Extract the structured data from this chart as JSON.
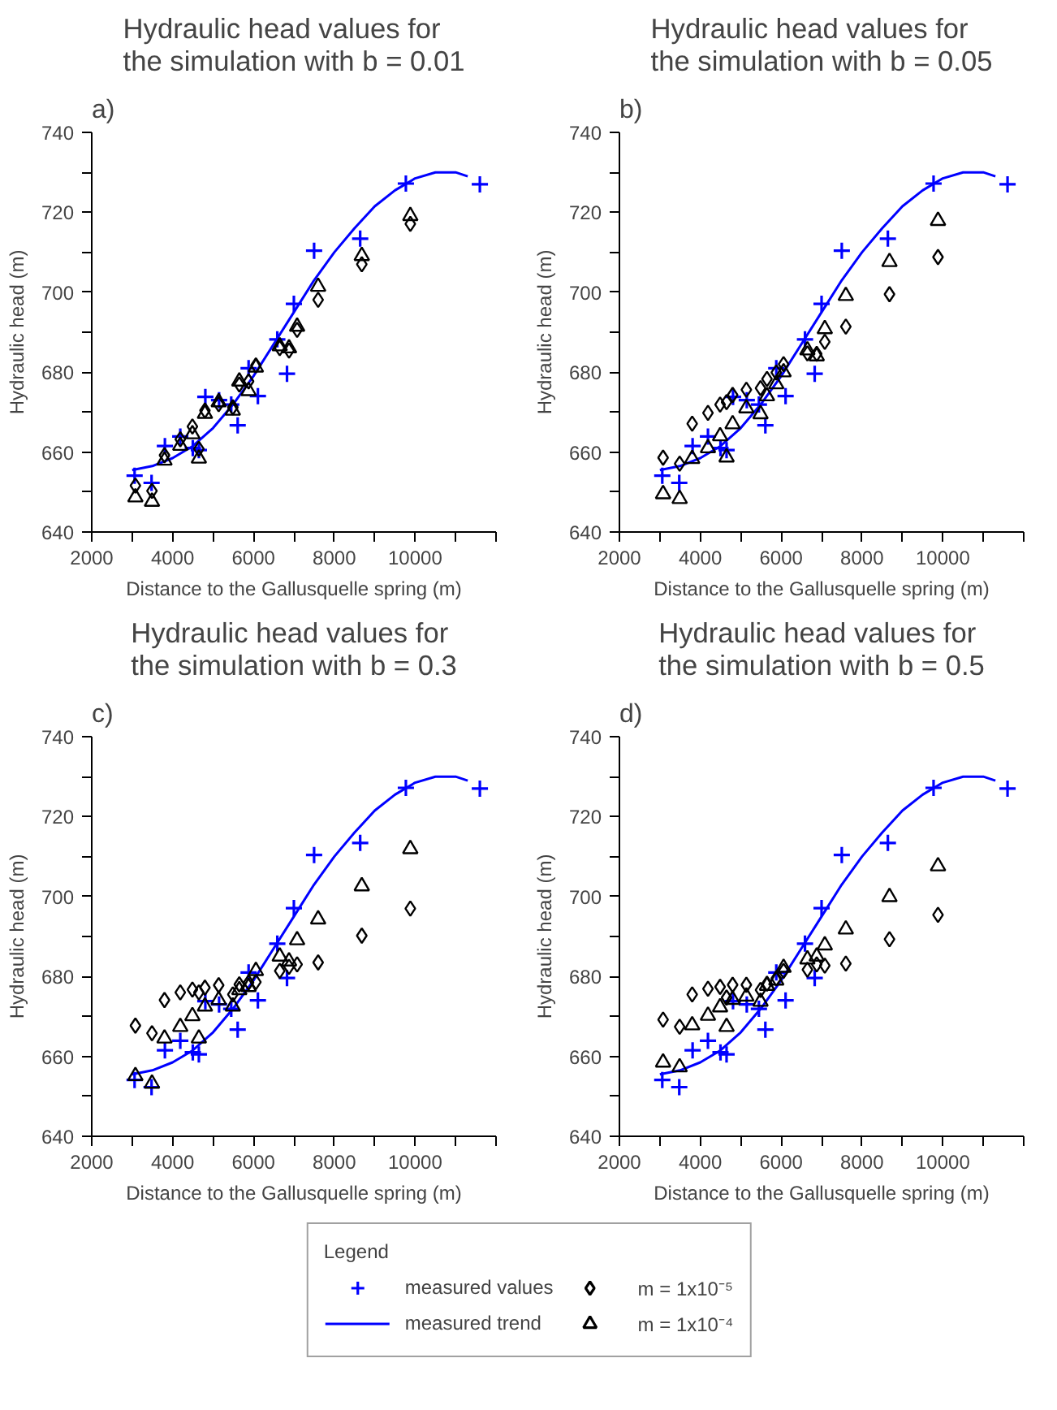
{
  "chart_data": [
    {
      "type": "scatter",
      "title": "Hydraulic head values for\nthe simulation with b = 0.01",
      "annotations": [
        "a)"
      ],
      "xlabel": "Distance to the Gallusquelle spring (m)",
      "ylabel": "Hydraulic head (m)",
      "xlim": [
        2000,
        12000
      ],
      "ylim": [
        640,
        740
      ],
      "xticks": [
        2000,
        {
          "value": 3000,
          "label": null
        },
        4000,
        {
          "value": 5000,
          "label": null
        },
        6000,
        {
          "value": 7000,
          "label": null
        },
        8000,
        {
          "value": 9000,
          "label": null
        },
        10000,
        {
          "value": 11000,
          "label": null
        },
        {
          "value": 12000,
          "label": null
        }
      ],
      "yticks": [
        640,
        {
          "value": 650,
          "label": null
        },
        660,
        {
          "value": 670,
          "label": null
        },
        680,
        {
          "value": 690,
          "label": null
        },
        700,
        {
          "value": 710,
          "label": null
        },
        720,
        {
          "value": 730,
          "label": null
        },
        740
      ],
      "grid": false,
      "legend": "bottom",
      "legend_title": "Legend",
      "series": [
        {
          "name": "measured values",
          "type": "scatter",
          "marker": "cross",
          "color": "#0000ff",
          "x": [
            3060,
            3480,
            3810,
            4190,
            4500,
            4650,
            4810,
            5150,
            5450,
            5610,
            5880,
            6110,
            6590,
            6830,
            7000,
            7500,
            8640,
            9770,
            11600
          ],
          "values": [
            654.1,
            652.3,
            661.5,
            663.9,
            661.0,
            660.5,
            673.8,
            673.0,
            671.9,
            666.7,
            681.0,
            674.0,
            688.2,
            679.6,
            697.1,
            710.4,
            713.4,
            727.2,
            727.0
          ]
        },
        {
          "name": "measured trend",
          "type": "line",
          "marker": "none",
          "color": "#0000ff",
          "x": [
            3000,
            3500,
            4000,
            4500,
            5000,
            5500,
            6000,
            6500,
            7000,
            7500,
            8000,
            8500,
            9000,
            9500,
            10000,
            10500,
            11000,
            11300
          ],
          "values": [
            655.5,
            656.5,
            658.5,
            661.5,
            666,
            672,
            679,
            687,
            695,
            703,
            710,
            716,
            721.5,
            725.5,
            728.5,
            730,
            730,
            729
          ]
        },
        {
          "name": "m = 1x10⁻⁵",
          "type": "scatter",
          "marker": "diamond",
          "color": "#000000",
          "x": [
            3080,
            3490,
            3800,
            4190,
            4490,
            4650,
            4800,
            5140,
            5490,
            5650,
            5880,
            6060,
            6650,
            6880,
            7080,
            7600,
            8680,
            9880
          ],
          "values": [
            651.6,
            650.3,
            659.2,
            663.2,
            666.4,
            660.8,
            670.4,
            672.0,
            671.2,
            676.9,
            677.7,
            681.7,
            686.0,
            685.4,
            690.6,
            698.1,
            707.0,
            717.1
          ]
        },
        {
          "name": "m = 1x10⁻⁴",
          "type": "scatter",
          "marker": "triangle",
          "color": "#000000",
          "x": [
            3080,
            3490,
            3800,
            4190,
            4490,
            4650,
            4800,
            5140,
            5490,
            5650,
            5880,
            6060,
            6650,
            6880,
            7080,
            7600,
            8680,
            9880
          ],
          "values": [
            648.7,
            647.6,
            657.9,
            661.6,
            664.5,
            658.4,
            669.6,
            672.5,
            670.4,
            677.7,
            675.3,
            681.2,
            686.5,
            686.0,
            691.4,
            701.4,
            709.1,
            719.1
          ]
        }
      ]
    },
    {
      "type": "scatter",
      "title": "Hydraulic head values for\nthe simulation with b = 0.05",
      "annotations": [
        "b)"
      ],
      "xlabel": "Distance to the Gallusquelle spring (m)",
      "ylabel": "Hydraulic head (m)",
      "xlim": [
        2000,
        12000
      ],
      "ylim": [
        640,
        740
      ],
      "xticks": [
        2000,
        {
          "value": 3000,
          "label": null
        },
        4000,
        {
          "value": 5000,
          "label": null
        },
        6000,
        {
          "value": 7000,
          "label": null
        },
        8000,
        {
          "value": 9000,
          "label": null
        },
        10000,
        {
          "value": 11000,
          "label": null
        },
        {
          "value": 12000,
          "label": null
        }
      ],
      "yticks": [
        640,
        {
          "value": 650,
          "label": null
        },
        660,
        {
          "value": 670,
          "label": null
        },
        680,
        {
          "value": 690,
          "label": null
        },
        700,
        {
          "value": 710,
          "label": null
        },
        720,
        {
          "value": 730,
          "label": null
        },
        740
      ],
      "grid": false,
      "series": [
        {
          "type": "scatter",
          "marker": "cross",
          "color": "#0000ff",
          "x": [
            3060,
            3480,
            3810,
            4190,
            4500,
            4650,
            4810,
            5150,
            5450,
            5610,
            5880,
            6110,
            6590,
            6830,
            7000,
            7500,
            8640,
            9770,
            11600
          ],
          "values": [
            654.1,
            652.3,
            661.5,
            663.9,
            661.0,
            660.5,
            673.8,
            673.0,
            671.9,
            666.7,
            681.0,
            674.0,
            688.2,
            679.6,
            697.1,
            710.4,
            713.4,
            727.2,
            727.0
          ]
        },
        {
          "type": "line",
          "marker": "none",
          "color": "#0000ff",
          "x": [
            3000,
            3500,
            4000,
            4500,
            5000,
            5500,
            6000,
            6500,
            7000,
            7500,
            8000,
            8500,
            9000,
            9500,
            10000,
            10500,
            11000,
            11300
          ],
          "values": [
            655.5,
            656.5,
            658.5,
            661.5,
            666,
            672,
            679,
            687,
            695,
            703,
            710,
            716,
            721.5,
            725.5,
            728.5,
            730,
            730,
            729
          ]
        },
        {
          "type": "scatter",
          "marker": "diamond",
          "color": "#000000",
          "x": [
            3080,
            3490,
            3800,
            4190,
            4490,
            4650,
            4800,
            5140,
            5490,
            5650,
            5880,
            6060,
            6650,
            6880,
            7080,
            7600,
            8680,
            9880
          ],
          "values": [
            658.6,
            657.1,
            667.1,
            669.8,
            671.9,
            672.5,
            674.3,
            675.6,
            676.0,
            678.3,
            679.9,
            682.0,
            684.7,
            684.6,
            687.6,
            691.4,
            699.5,
            708.8
          ]
        },
        {
          "type": "scatter",
          "marker": "triangle",
          "color": "#000000",
          "x": [
            3080,
            3490,
            3800,
            4190,
            4490,
            4650,
            4800,
            5140,
            5490,
            5650,
            5880,
            6060,
            6650,
            6880,
            7080,
            7600,
            8680,
            9880
          ],
          "values": [
            649.5,
            648.3,
            658.3,
            661.0,
            664.0,
            658.7,
            667.0,
            671.0,
            669.5,
            674.0,
            677.0,
            680.0,
            685.5,
            684.0,
            690.8,
            699.1,
            707.6,
            717.9
          ]
        }
      ]
    },
    {
      "type": "scatter",
      "title": "Hydraulic head values for\nthe simulation with b = 0.3",
      "annotations": [
        "c)"
      ],
      "xlabel": "Distance to the Gallusquelle spring (m)",
      "ylabel": "Hydraulic head (m)",
      "xlim": [
        2000,
        12000
      ],
      "ylim": [
        640,
        740
      ],
      "xticks": [
        2000,
        {
          "value": 3000,
          "label": null
        },
        4000,
        {
          "value": 5000,
          "label": null
        },
        6000,
        {
          "value": 7000,
          "label": null
        },
        8000,
        {
          "value": 9000,
          "label": null
        },
        10000,
        {
          "value": 11000,
          "label": null
        },
        {
          "value": 12000,
          "label": null
        }
      ],
      "yticks": [
        640,
        {
          "value": 650,
          "label": null
        },
        660,
        {
          "value": 670,
          "label": null
        },
        680,
        {
          "value": 690,
          "label": null
        },
        700,
        {
          "value": 710,
          "label": null
        },
        720,
        {
          "value": 730,
          "label": null
        },
        740
      ],
      "grid": false,
      "series": [
        {
          "type": "scatter",
          "marker": "cross",
          "color": "#0000ff",
          "x": [
            3060,
            3480,
            3810,
            4190,
            4500,
            4650,
            4810,
            5150,
            5450,
            5610,
            5880,
            6110,
            6590,
            6830,
            7000,
            7500,
            8640,
            9770,
            11600
          ],
          "values": [
            654.1,
            652.3,
            661.5,
            663.9,
            661.0,
            660.5,
            673.8,
            673.0,
            671.9,
            666.7,
            681.0,
            674.0,
            688.2,
            679.6,
            697.1,
            710.4,
            713.4,
            727.2,
            727.0
          ]
        },
        {
          "type": "line",
          "marker": "none",
          "color": "#0000ff",
          "x": [
            3000,
            3500,
            4000,
            4500,
            5000,
            5500,
            6000,
            6500,
            7000,
            7500,
            8000,
            8500,
            9000,
            9500,
            10000,
            10500,
            11000,
            11300
          ],
          "values": [
            655.5,
            656.5,
            658.5,
            661.5,
            666,
            672,
            679,
            687,
            695,
            703,
            710,
            716,
            721.5,
            725.5,
            728.5,
            730,
            730,
            729
          ]
        },
        {
          "type": "scatter",
          "marker": "diamond",
          "color": "#000000",
          "x": [
            3080,
            3490,
            3800,
            4190,
            4490,
            4650,
            4800,
            5140,
            5490,
            5650,
            5880,
            6060,
            6650,
            6880,
            7080,
            7600,
            8680,
            9880
          ],
          "values": [
            667.7,
            665.8,
            674.1,
            676.0,
            676.7,
            676.0,
            677.2,
            677.8,
            675.5,
            678.0,
            678.5,
            678.6,
            681.4,
            682.4,
            683.0,
            683.5,
            690.2,
            697.0
          ]
        },
        {
          "type": "scatter",
          "marker": "triangle",
          "color": "#000000",
          "x": [
            3080,
            3490,
            3800,
            4190,
            4490,
            4650,
            4800,
            5140,
            5490,
            5650,
            5880,
            6060,
            6650,
            6880,
            7080,
            7600,
            8680,
            9880
          ],
          "values": [
            655.1,
            653.2,
            664.5,
            667.4,
            670.1,
            664.5,
            672.5,
            674.1,
            672.5,
            676.6,
            677.4,
            681.4,
            685.0,
            683.8,
            689.1,
            694.3,
            702.6,
            711.9
          ]
        }
      ]
    },
    {
      "type": "scatter",
      "title": "Hydraulic head values for\nthe simulation with b = 0.5",
      "annotations": [
        "d)"
      ],
      "xlabel": "Distance to the Gallusquelle spring (m)",
      "ylabel": "Hydraulic head (m)",
      "xlim": [
        2000,
        12000
      ],
      "ylim": [
        640,
        740
      ],
      "xticks": [
        2000,
        {
          "value": 3000,
          "label": null
        },
        4000,
        {
          "value": 5000,
          "label": null
        },
        6000,
        {
          "value": 7000,
          "label": null
        },
        8000,
        {
          "value": 9000,
          "label": null
        },
        10000,
        {
          "value": 11000,
          "label": null
        },
        {
          "value": 12000,
          "label": null
        }
      ],
      "yticks": [
        640,
        {
          "value": 650,
          "label": null
        },
        660,
        {
          "value": 670,
          "label": null
        },
        680,
        {
          "value": 690,
          "label": null
        },
        700,
        {
          "value": 710,
          "label": null
        },
        720,
        {
          "value": 730,
          "label": null
        },
        740
      ],
      "grid": false,
      "series": [
        {
          "type": "scatter",
          "marker": "cross",
          "color": "#0000ff",
          "x": [
            3060,
            3480,
            3810,
            4190,
            4500,
            4650,
            4810,
            5150,
            5450,
            5610,
            5880,
            6110,
            6590,
            6830,
            7000,
            7500,
            8640,
            9770,
            11600
          ],
          "values": [
            654.1,
            652.3,
            661.5,
            663.9,
            661.0,
            660.5,
            673.8,
            673.0,
            671.9,
            666.7,
            681.0,
            674.0,
            688.2,
            679.6,
            697.1,
            710.4,
            713.4,
            727.2,
            727.0
          ]
        },
        {
          "type": "line",
          "marker": "none",
          "color": "#0000ff",
          "x": [
            3000,
            3500,
            4000,
            4500,
            5000,
            5500,
            6000,
            6500,
            7000,
            7500,
            8000,
            8500,
            9000,
            9500,
            10000,
            10500,
            11000,
            11300
          ],
          "values": [
            655.5,
            656.5,
            658.5,
            661.5,
            666,
            672,
            679,
            687,
            695,
            703,
            710,
            716,
            721.5,
            725.5,
            728.5,
            730,
            730,
            729
          ]
        },
        {
          "type": "scatter",
          "marker": "diamond",
          "color": "#000000",
          "x": [
            3080,
            3490,
            3800,
            4190,
            4490,
            4650,
            4800,
            5140,
            5490,
            5650,
            5880,
            6060,
            6650,
            6880,
            7080,
            7600,
            8680,
            9880
          ],
          "values": [
            669.2,
            667.4,
            675.5,
            676.9,
            677.4,
            674.7,
            677.9,
            677.9,
            676.6,
            678.2,
            679.5,
            681.4,
            681.7,
            683.0,
            682.7,
            683.2,
            689.3,
            695.4
          ]
        },
        {
          "type": "scatter",
          "marker": "triangle",
          "color": "#000000",
          "x": [
            3080,
            3490,
            3800,
            4190,
            4490,
            4650,
            4800,
            5140,
            5490,
            5650,
            5880,
            6060,
            6650,
            6880,
            7080,
            7600,
            8680,
            9880
          ],
          "values": [
            658.5,
            657.3,
            667.8,
            670.2,
            672.3,
            667.4,
            674.2,
            675.0,
            673.7,
            677.7,
            679.0,
            682.2,
            684.3,
            685.0,
            687.8,
            691.8,
            699.9,
            707.6
          ]
        }
      ]
    }
  ]
}
